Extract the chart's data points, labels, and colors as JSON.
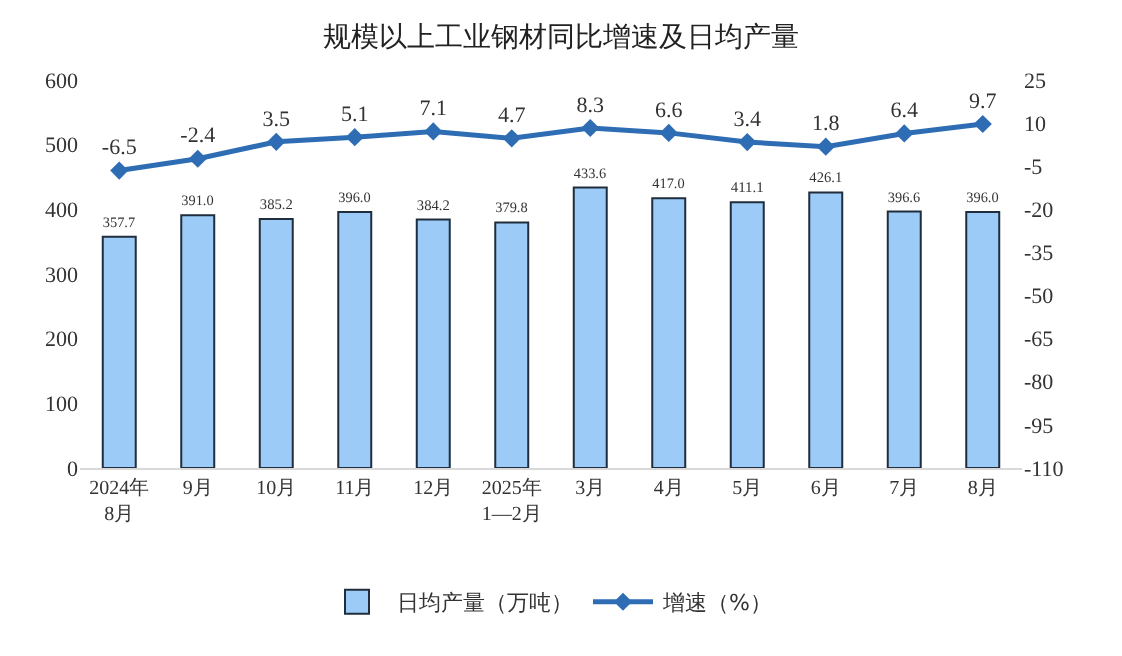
{
  "chart_data": {
    "type": "bar",
    "title": "规模以上工业钢材同比增速及日均产量",
    "categories": [
      "2024年\n8月",
      "9月",
      "10月",
      "11月",
      "12月",
      "2025年\n1—2月",
      "3月",
      "4月",
      "5月",
      "6月",
      "7月",
      "8月"
    ],
    "series": [
      {
        "name": "日均产量（万吨）",
        "color": "#9dcbf7",
        "values": [
          357.7,
          391.0,
          385.2,
          396.0,
          384.2,
          379.8,
          433.6,
          417.0,
          411.1,
          426.1,
          396.6,
          396.0
        ],
        "value_labels": [
          "357.7",
          "391.0",
          "385.2",
          "396.0",
          "384.2",
          "379.8",
          "433.6",
          "417.0",
          "411.1",
          "426.1",
          "396.6",
          "396.0"
        ]
      },
      {
        "name": "增速（%）",
        "type": "line",
        "axis": "y2",
        "color": "#2e6db4",
        "values": [
          -6.5,
          -2.4,
          3.5,
          5.1,
          7.1,
          4.7,
          8.3,
          6.6,
          3.4,
          1.8,
          6.4,
          9.7
        ],
        "value_labels": [
          "-6.5",
          "-2.4",
          "3.5",
          "5.1",
          "7.1",
          "4.7",
          "8.3",
          "6.6",
          "3.4",
          "1.8",
          "6.4",
          "9.7"
        ]
      }
    ],
    "ylim": [
      0,
      600
    ],
    "yticks": [
      0,
      100,
      200,
      300,
      400,
      500,
      600
    ],
    "y2lim": [
      -110,
      25
    ],
    "y2ticks": [
      -110,
      -95,
      -80,
      -65,
      -50,
      -35,
      -20,
      -5,
      10,
      25
    ],
    "legend": "bottom",
    "marker": "diamond"
  }
}
